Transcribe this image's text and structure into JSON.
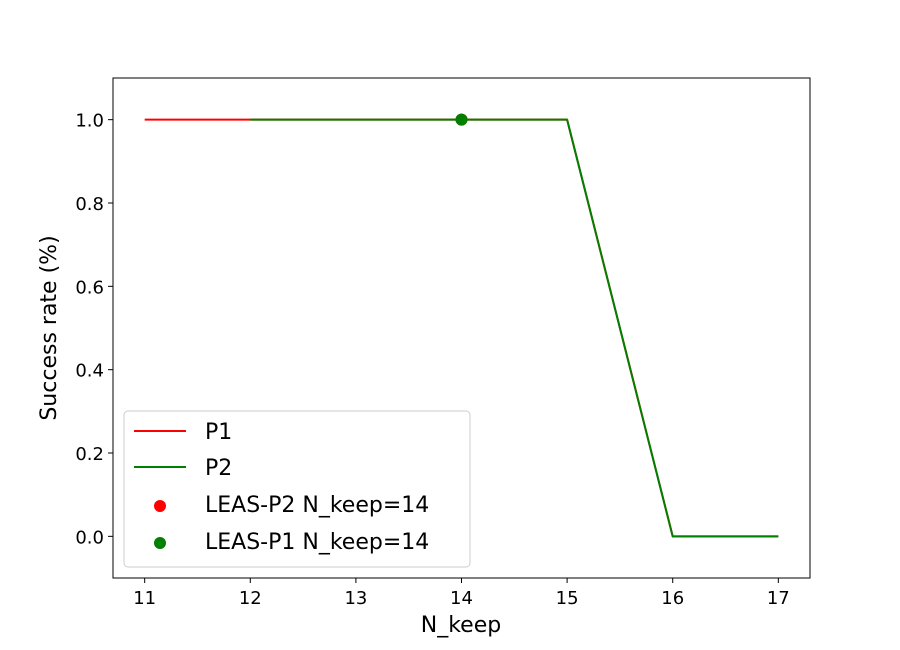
{
  "chart_data": {
    "type": "line",
    "xlabel": "N_keep",
    "ylabel": "Success rate (%)",
    "xlim": [
      10.7,
      17.3
    ],
    "ylim": [
      -0.1,
      1.1
    ],
    "xticks": [
      11,
      12,
      13,
      14,
      15,
      16,
      17
    ],
    "yticks": [
      0.0,
      0.2,
      0.4,
      0.6,
      0.8,
      1.0
    ],
    "xtick_labels": [
      "11",
      "12",
      "13",
      "14",
      "15",
      "16",
      "17"
    ],
    "ytick_labels": [
      "0.0",
      "0.2",
      "0.4",
      "0.6",
      "0.8",
      "1.0"
    ],
    "grid": false,
    "legend_position": "lower-left",
    "series": [
      {
        "name": "P1",
        "kind": "line",
        "color": "#ff0000",
        "x": [
          11,
          12,
          13,
          14,
          15,
          16,
          17
        ],
        "y": [
          1.0,
          1.0,
          1.0,
          1.0,
          1.0,
          0.0,
          0.0
        ]
      },
      {
        "name": "P2",
        "kind": "line",
        "color": "#008000",
        "x": [
          12,
          13,
          14,
          15,
          16,
          17
        ],
        "y": [
          1.0,
          1.0,
          1.0,
          1.0,
          0.0,
          0.0
        ]
      },
      {
        "name": "LEAS-P2 N_keep=14",
        "kind": "scatter",
        "color": "#ff0000",
        "x": [
          14
        ],
        "y": [
          1.0
        ]
      },
      {
        "name": "LEAS-P1 N_keep=14",
        "kind": "scatter",
        "color": "#008000",
        "x": [
          14
        ],
        "y": [
          1.0
        ]
      }
    ]
  }
}
